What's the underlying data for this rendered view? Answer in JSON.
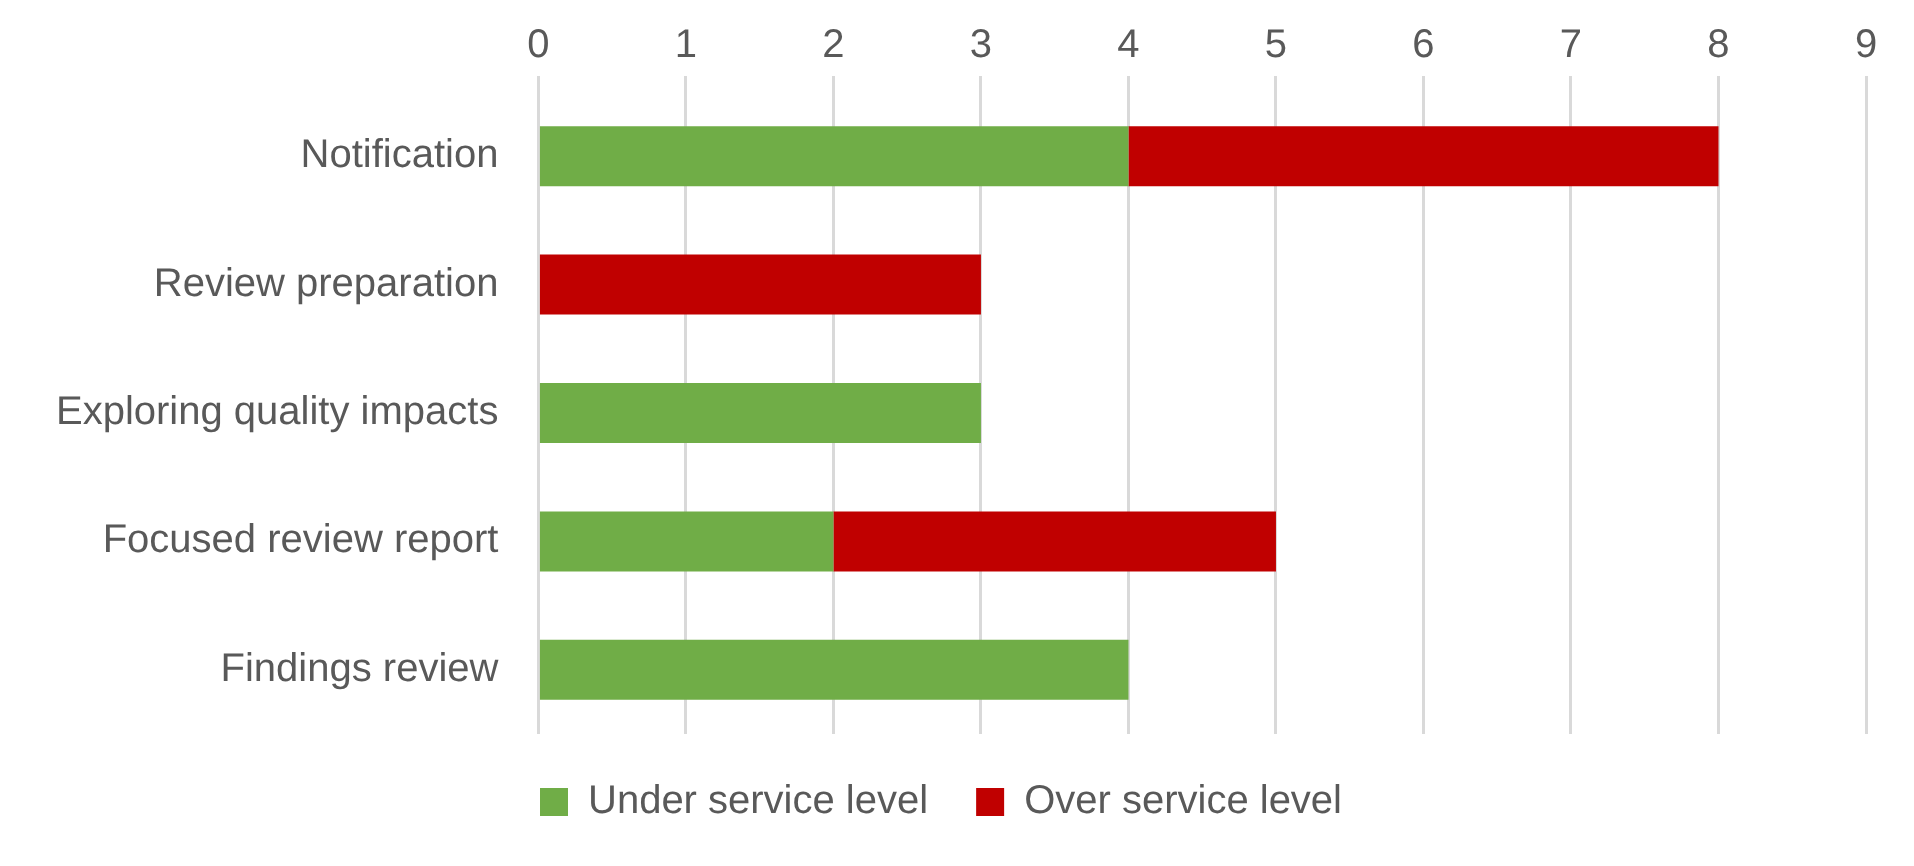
{
  "chart_data": {
    "type": "bar",
    "orientation": "horizontal",
    "stacked": true,
    "categories": [
      "Notification",
      "Review preparation",
      "Exploring quality impacts",
      "Focused review report",
      "Findings review"
    ],
    "series": [
      {
        "name": "Under service level",
        "color": "#70ad47",
        "values": [
          4,
          0,
          3,
          2,
          4
        ]
      },
      {
        "name": "Over service level",
        "color": "#c00000",
        "values": [
          4,
          3,
          0,
          3,
          0
        ]
      }
    ],
    "xlim": [
      0,
      9
    ],
    "xticks": [
      0,
      1,
      2,
      3,
      4,
      5,
      6,
      7,
      8,
      9
    ],
    "grid": "x",
    "legend": "bottom"
  }
}
